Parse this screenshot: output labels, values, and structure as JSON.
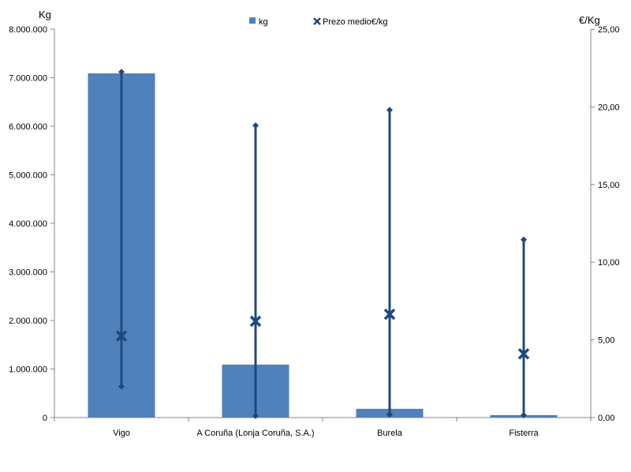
{
  "chart_data": {
    "type": "bar",
    "categories": [
      "Vigo",
      "A Coruña (Lonja Coruña, S.A.)",
      "Burela",
      "Fisterra"
    ],
    "left_axis": {
      "label": "Kg",
      "ylim": [
        0,
        8000000
      ],
      "ticks": [
        0,
        1000000,
        2000000,
        3000000,
        4000000,
        5000000,
        6000000,
        7000000,
        8000000
      ],
      "tick_labels": [
        "0",
        "1.000.000",
        "2.000.000",
        "3.000.000",
        "4.000.000",
        "5.000.000",
        "6.000.000",
        "7.000.000",
        "8.000.000"
      ]
    },
    "right_axis": {
      "label": "€/Kg",
      "ylim": [
        0,
        25
      ],
      "ticks": [
        0,
        5,
        10,
        15,
        20,
        25
      ],
      "tick_labels": [
        "0,00",
        "5,00",
        "10,00",
        "15,00",
        "20,00",
        "25,00"
      ]
    },
    "series": [
      {
        "name": "kg",
        "axis": "left",
        "kind": "bar",
        "color": "#4f81bd",
        "values": [
          7090000,
          1090000,
          180000,
          50000
        ]
      },
      {
        "name": "Prezo medio€/kg",
        "axis": "right",
        "kind": "marker-x",
        "color": "#1f497d",
        "values": [
          5.25,
          6.2,
          6.65,
          4.1
        ],
        "min": [
          2.0,
          0.1,
          0.2,
          0.15
        ],
        "max": [
          22.25,
          18.8,
          19.8,
          11.45
        ]
      }
    ],
    "legend": "top",
    "grid": false
  }
}
